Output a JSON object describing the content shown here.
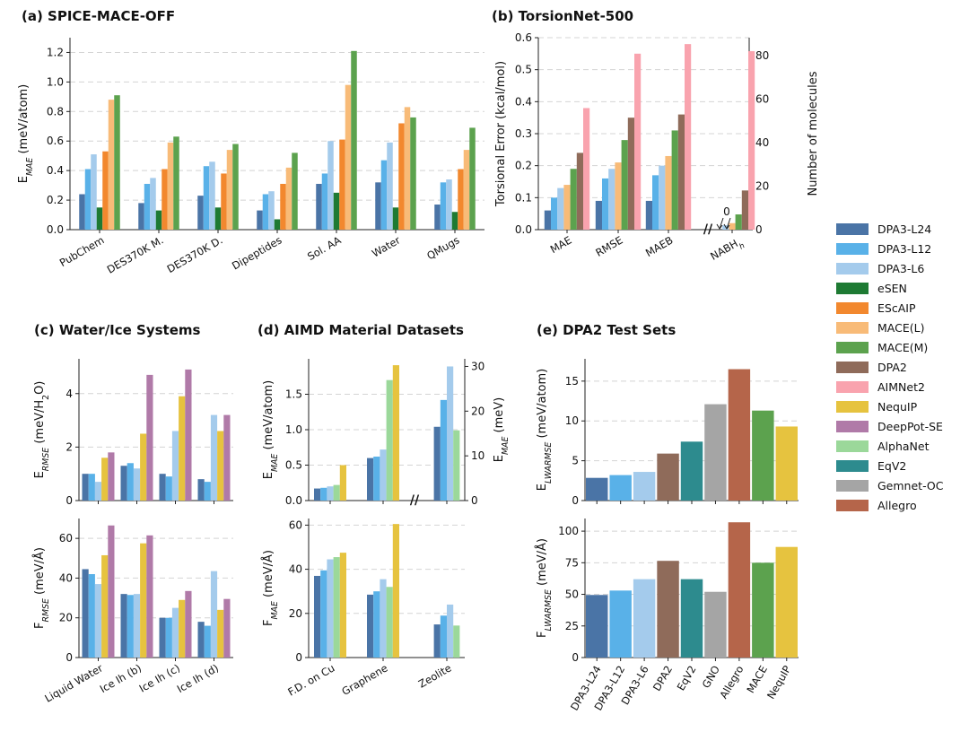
{
  "colors": {
    "DPA3-L24": "#4a74a6",
    "DPA3-L12": "#59b1e8",
    "DPA3-L6": "#a4cbec",
    "eSEN": "#1e7a33",
    "EScAIP": "#f2882e",
    "MACE(L)": "#f8bb78",
    "MACE(M)": "#5ca24e",
    "DPA2": "#8f6b5a",
    "AIMNet2": "#f9a3ae",
    "NequIP": "#e6c33f",
    "DeepPot-SE": "#b07aa8",
    "AlphaNet": "#9bd89a",
    "EqV2": "#2d8b8e",
    "Gemnet-OC": "#a5a5a5",
    "Allegro": "#b5654a",
    "MACE": "#5ca24e"
  },
  "legend": [
    "DPA3-L24",
    "DPA3-L12",
    "DPA3-L6",
    "eSEN",
    "EScAIP",
    "MACE(L)",
    "MACE(M)",
    "DPA2",
    "AIMNet2",
    "NequIP",
    "DeepPot-SE",
    "AlphaNet",
    "EqV2",
    "Gemnet-OC",
    "Allegro"
  ],
  "chart_data": [
    {
      "id": "a",
      "type": "bar",
      "title": "(a) SPICE-MACE-OFF",
      "ylabel_main": "E",
      "ylabel_sub": "MAE",
      "ylabel_rest": " (meV/atom)",
      "ylim": [
        0,
        1.3
      ],
      "yticks": [
        "0.0",
        "0.2",
        "0.4",
        "0.6",
        "0.8",
        "1.0",
        "1.2"
      ],
      "categories": [
        "PubChem",
        "DES370K M.",
        "DES370K D.",
        "Dipeptides",
        "Sol. AA",
        "Water",
        "QMugs"
      ],
      "series": [
        {
          "name": "DPA3-L24",
          "values": [
            0.24,
            0.18,
            0.23,
            0.13,
            0.31,
            0.32,
            0.17
          ]
        },
        {
          "name": "DPA3-L12",
          "values": [
            0.41,
            0.31,
            0.43,
            0.24,
            0.38,
            0.47,
            0.32
          ]
        },
        {
          "name": "DPA3-L6",
          "values": [
            0.51,
            0.35,
            0.46,
            0.26,
            0.6,
            0.59,
            0.34
          ]
        },
        {
          "name": "eSEN",
          "values": [
            0.15,
            0.13,
            0.15,
            0.07,
            0.25,
            0.15,
            0.12
          ]
        },
        {
          "name": "EScAIP",
          "values": [
            0.53,
            0.41,
            0.38,
            0.31,
            0.61,
            0.72,
            0.41
          ]
        },
        {
          "name": "MACE(L)",
          "values": [
            0.88,
            0.59,
            0.54,
            0.42,
            0.98,
            0.83,
            0.54
          ]
        },
        {
          "name": "MACE(M)",
          "values": [
            0.91,
            0.63,
            0.58,
            0.52,
            1.21,
            0.76,
            0.69
          ]
        }
      ]
    },
    {
      "id": "b",
      "type": "bar",
      "title": "(b) TorsionNet-500",
      "ylabel": "Torsional Error (kcal/mol)",
      "ylabel_right": "Number of molecules",
      "ylim": [
        0,
        0.6
      ],
      "yticks": [
        "0.0",
        "0.1",
        "0.2",
        "0.3",
        "0.4",
        "0.5",
        "0.6"
      ],
      "ylim_right": [
        0,
        88.2
      ],
      "yticks_right": [
        "0",
        "20",
        "40",
        "60",
        "80"
      ],
      "categories": [
        "MAE",
        "RMSE",
        "MAEB"
      ],
      "nabh_label_main": "NABH",
      "nabh_label_sub": "h",
      "series": [
        {
          "name": "DPA3-L24",
          "values": [
            0.06,
            0.09,
            0.09
          ]
        },
        {
          "name": "DPA3-L12",
          "values": [
            0.1,
            0.16,
            0.17
          ]
        },
        {
          "name": "DPA3-L6",
          "values": [
            0.13,
            0.19,
            0.2
          ]
        },
        {
          "name": "MACE(L)",
          "values": [
            0.14,
            0.21,
            0.23
          ]
        },
        {
          "name": "MACE(M)",
          "values": [
            0.19,
            0.28,
            0.31
          ]
        },
        {
          "name": "DPA2",
          "values": [
            0.24,
            0.35,
            0.36
          ]
        },
        {
          "name": "AIMNet2",
          "values": [
            0.38,
            0.55,
            0.58
          ]
        }
      ],
      "nabh_series": [
        {
          "name": "DPA3-L24",
          "value": 0
        },
        {
          "name": "DPA3-L12",
          "value": 0
        },
        {
          "name": "DPA3-L6",
          "value": 2
        },
        {
          "name": "MACE(L)",
          "value": 3
        },
        {
          "name": "MACE(M)",
          "value": 7
        },
        {
          "name": "DPA2",
          "value": 18
        },
        {
          "name": "AIMNet2",
          "value": 82
        }
      ],
      "annotation": "0",
      "break_mark": "//"
    },
    {
      "id": "c",
      "type": "bar",
      "title": "(c) Water/Ice Systems",
      "categories": [
        "Liquid Water",
        "Ice Ih (b)",
        "Ice Ih (c)",
        "Ice Ih (d)"
      ],
      "series_names": [
        "DPA3-L24",
        "DPA3-L12",
        "DPA3-L6",
        "NequIP",
        "DeepPot-SE"
      ],
      "energy": {
        "ylabel_main": "E",
        "ylabel_sub": "RMSE",
        "ylabel_rest": " (meV/H",
        "ylabel_sub2": "2",
        "ylabel_end": "O)",
        "ylim": [
          0,
          5.3
        ],
        "yticks": [
          "0",
          "2",
          "4"
        ],
        "values": [
          [
            1.0,
            1.0,
            0.7,
            1.6,
            1.8
          ],
          [
            1.3,
            1.4,
            1.2,
            2.5,
            4.7
          ],
          [
            1.0,
            0.9,
            2.6,
            3.9,
            4.9
          ],
          [
            0.8,
            0.7,
            3.2,
            2.6,
            3.2
          ]
        ]
      },
      "force": {
        "ylabel_main": "F",
        "ylabel_sub": "RMSE",
        "ylabel_rest": " (meV/Å)",
        "ylim": [
          0,
          70
        ],
        "yticks": [
          "0",
          "20",
          "40",
          "60"
        ],
        "values": [
          [
            44.5,
            42,
            37,
            51.5,
            66.5
          ],
          [
            32,
            31.5,
            32,
            57.5,
            61.5
          ],
          [
            20,
            20,
            25,
            29,
            33.5
          ],
          [
            18,
            16,
            43.5,
            24,
            29.5
          ]
        ]
      }
    },
    {
      "id": "d",
      "type": "bar",
      "title": "(d) AIMD Material Datasets",
      "categories": [
        "F.D. on Cu",
        "Graphene",
        "Zeolite"
      ],
      "energy": {
        "ylabel_main": "E",
        "ylabel_sub": "MAE",
        "ylabel_rest": " (meV/atom)",
        "ylim": [
          0,
          2.0
        ],
        "yticks": [
          "0.0",
          "0.5",
          "1.0",
          "1.5"
        ],
        "ylabel_right_main": "E",
        "ylabel_right_sub": "MAE",
        "ylabel_right_rest": " (meV)",
        "ylim_right": [
          0,
          31.7
        ],
        "yticks_right": [
          "0",
          "10",
          "20",
          "30"
        ],
        "groups": [
          {
            "series": [
              "DPA3-L24",
              "DPA3-L12",
              "DPA3-L6",
              "AlphaNet",
              "NequIP"
            ],
            "values": [
              0.17,
              0.18,
              0.2,
              0.22,
              0.5
            ]
          },
          {
            "series": [
              "DPA3-L24",
              "DPA3-L12",
              "DPA3-L6",
              "AlphaNet",
              "NequIP"
            ],
            "values": [
              0.6,
              0.62,
              0.72,
              1.7,
              1.91
            ]
          },
          {
            "series": [
              "DPA3-L24",
              "DPA3-L12",
              "DPA3-L6",
              "AlphaNet"
            ],
            "values": [
              16.5,
              22.5,
              30,
              15.7
            ]
          }
        ],
        "break_mark": "//"
      },
      "force": {
        "ylabel_main": "F",
        "ylabel_sub": "MAE",
        "ylabel_rest": " (meV/Å)",
        "ylim": [
          0,
          63
        ],
        "yticks": [
          "0",
          "20",
          "40",
          "60"
        ],
        "groups": [
          {
            "series": [
              "DPA3-L24",
              "DPA3-L12",
              "DPA3-L6",
              "AlphaNet",
              "NequIP"
            ],
            "values": [
              37,
              39.5,
              44.5,
              45.5,
              47.5
            ]
          },
          {
            "series": [
              "DPA3-L24",
              "DPA3-L12",
              "DPA3-L6",
              "AlphaNet",
              "NequIP"
            ],
            "values": [
              28.5,
              30,
              35.5,
              32,
              60.5
            ]
          },
          {
            "series": [
              "DPA3-L24",
              "DPA3-L12",
              "DPA3-L6",
              "AlphaNet"
            ],
            "values": [
              15,
              19,
              24,
              14.5
            ]
          }
        ]
      }
    },
    {
      "id": "e",
      "type": "bar",
      "title": "(e) DPA2 Test Sets",
      "categories": [
        "DPA3-L24",
        "DPA3-L12",
        "DPA3-L6",
        "DPA2",
        "EqV2",
        "GNO",
        "Allegro",
        "MACE",
        "NequIP"
      ],
      "series_colors": [
        "DPA3-L24",
        "DPA3-L12",
        "DPA3-L6",
        "DPA2",
        "EqV2",
        "Gemnet-OC",
        "Allegro",
        "MACE",
        "NequIP"
      ],
      "energy": {
        "ylabel_main": "E",
        "ylabel_sub": "LWARMSE",
        "ylabel_rest": " (meV/atom)",
        "ylim": [
          0,
          17.8
        ],
        "yticks": [
          "0",
          "5",
          "10",
          "15"
        ],
        "values": [
          2.85,
          3.2,
          3.6,
          5.9,
          7.4,
          12.1,
          16.5,
          11.3,
          9.3
        ]
      },
      "force": {
        "ylabel_main": "F",
        "ylabel_sub": "LWARMSE",
        "ylabel_rest": " (meV/Å)",
        "ylim": [
          0,
          110
        ],
        "yticks": [
          "0",
          "25",
          "50",
          "75",
          "100"
        ],
        "values": [
          49.5,
          53,
          62,
          76.5,
          62,
          52,
          107,
          75,
          87.5
        ]
      }
    }
  ]
}
